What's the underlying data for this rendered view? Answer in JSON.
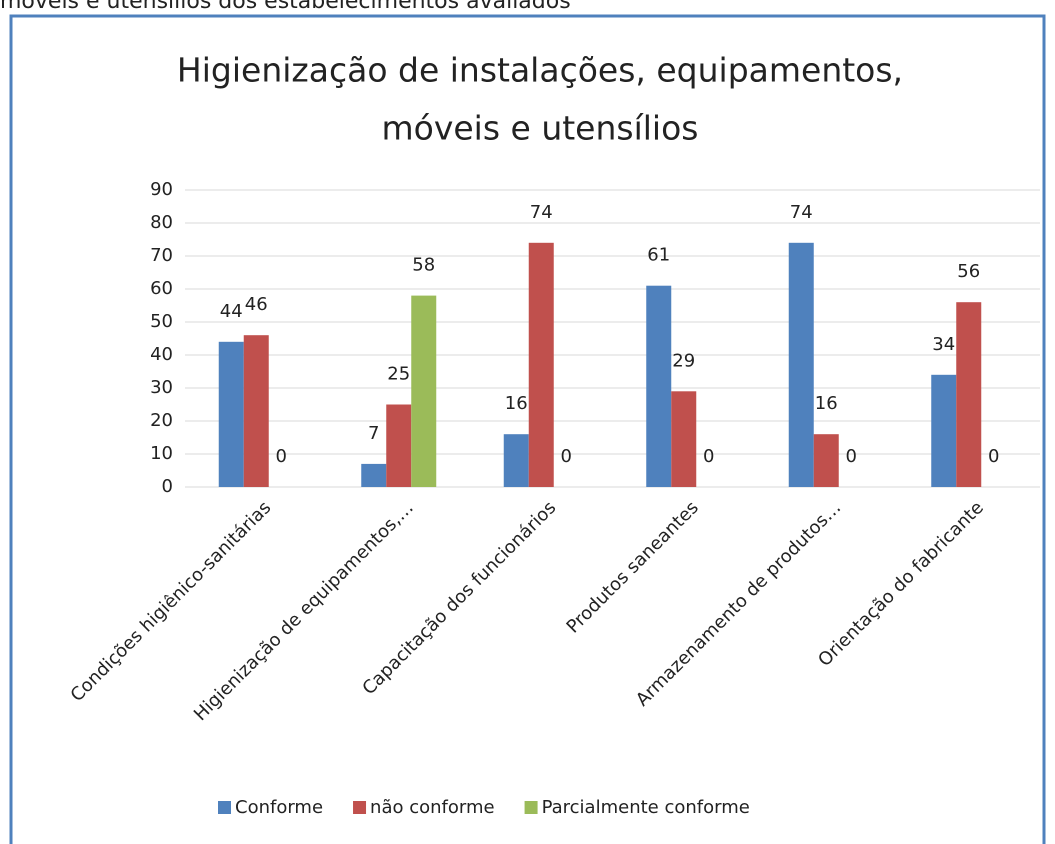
{
  "caption": "móveis e utensílios dos estabelecimentos avaliados",
  "chart_data": {
    "type": "bar",
    "title": [
      "Higienização de instalações, equipamentos,",
      "móveis e utensílios"
    ],
    "categories": [
      "Condições higiênico-sanitárias",
      "Higienização de equipamentos,…",
      "Capacitação dos funcionários",
      "Produtos saneantes",
      "Armazenamento de produtos…",
      "Orientação do fabricante"
    ],
    "series": [
      {
        "name": "Conforme",
        "color": "#4f81bd",
        "values": [
          44,
          7,
          16,
          61,
          74,
          34
        ]
      },
      {
        "name": "não conforme",
        "color": "#c0504d",
        "values": [
          46,
          25,
          74,
          29,
          16,
          56
        ]
      },
      {
        "name": "Parcialmente conforme",
        "color": "#9bbb59",
        "values": [
          0,
          58,
          0,
          0,
          0,
          0
        ]
      }
    ],
    "ylim": [
      0,
      90
    ],
    "yticks": [
      0,
      10,
      20,
      30,
      40,
      50,
      60,
      70,
      80,
      90
    ],
    "grid": true,
    "legend": "bottom"
  }
}
